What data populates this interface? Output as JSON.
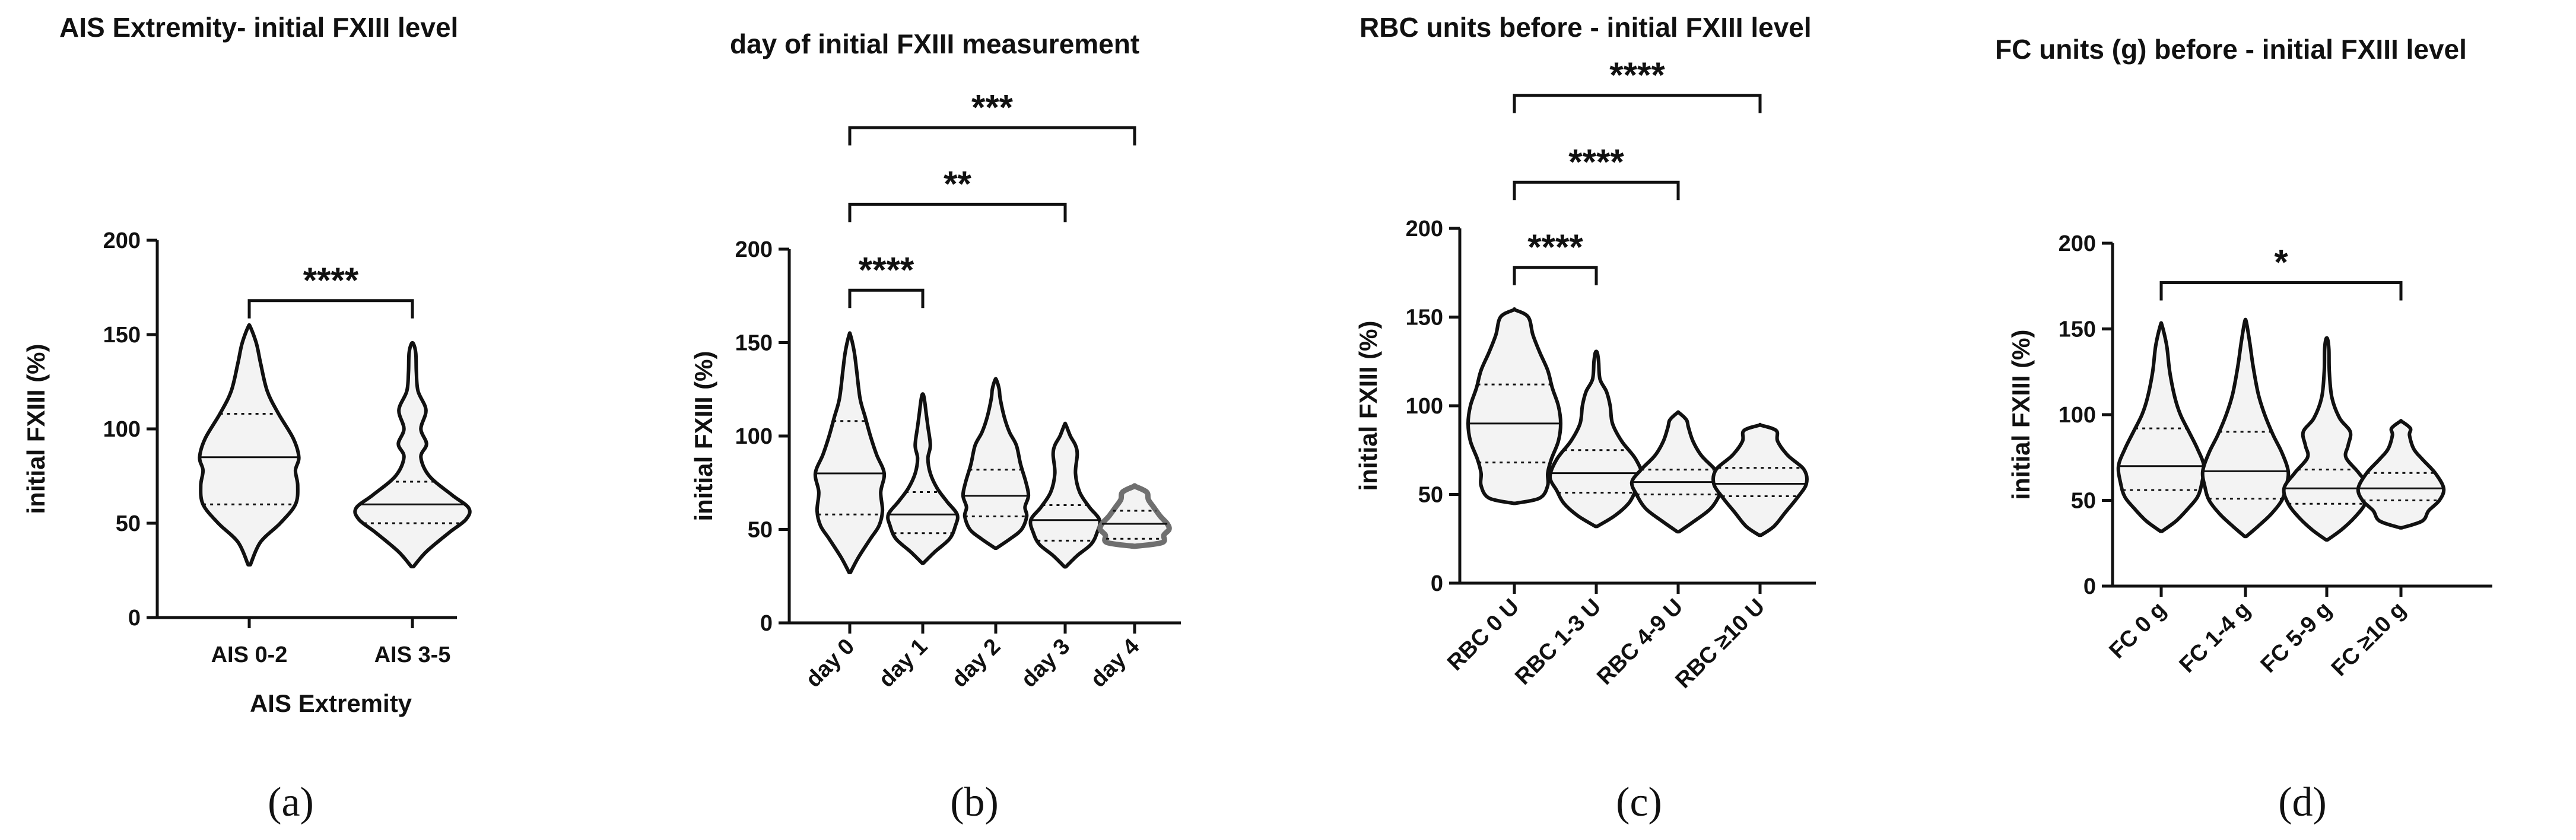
{
  "chart_data": [
    {
      "type": "violin",
      "panel_label": "(a)",
      "title": "AIS Extremity- initial FXIII level",
      "ylabel": "initial FXIII (%)",
      "xlabel": "AIS Extremity",
      "ylim": [
        0,
        200
      ],
      "yticks": [
        "0",
        "50",
        "100",
        "150",
        "200"
      ],
      "categories": [
        "AIS 0-2",
        "AIS 3-5"
      ],
      "series": [
        {
          "name": "AIS 0-2",
          "min": 28,
          "q1": 60,
          "median": 85,
          "q3": 108,
          "max": 154,
          "shape": [
            [
              28,
              0.02
            ],
            [
              40,
              0.2
            ],
            [
              50,
              0.55
            ],
            [
              60,
              0.82
            ],
            [
              70,
              0.86
            ],
            [
              78,
              0.82
            ],
            [
              85,
              0.88
            ],
            [
              95,
              0.78
            ],
            [
              108,
              0.52
            ],
            [
              120,
              0.32
            ],
            [
              135,
              0.2
            ],
            [
              145,
              0.13
            ],
            [
              154,
              0.02
            ]
          ]
        },
        {
          "name": "AIS 3-5",
          "min": 27,
          "q1": 50,
          "median": 60,
          "q3": 72,
          "max": 145,
          "shape": [
            [
              27,
              0.02
            ],
            [
              35,
              0.25
            ],
            [
              45,
              0.65
            ],
            [
              52,
              0.95
            ],
            [
              58,
              1.0
            ],
            [
              65,
              0.7
            ],
            [
              75,
              0.3
            ],
            [
              85,
              0.15
            ],
            [
              92,
              0.25
            ],
            [
              100,
              0.15
            ],
            [
              110,
              0.24
            ],
            [
              120,
              0.1
            ],
            [
              130,
              0.07
            ],
            [
              140,
              0.06
            ],
            [
              145,
              0.02
            ]
          ]
        }
      ],
      "comparisons": [
        {
          "from": 0,
          "to": 1,
          "label": "****",
          "level": 168
        }
      ]
    },
    {
      "type": "violin",
      "panel_label": "(b)",
      "title": "day of initial FXIII measurement",
      "ylabel": "initial FXIII (%)",
      "xlabel": "",
      "ylim": [
        0,
        200
      ],
      "yticks": [
        "0",
        "50",
        "100",
        "150",
        "200"
      ],
      "categories": [
        "day 0",
        "day 1",
        "day 2",
        "day 3",
        "day 4"
      ],
      "series": [
        {
          "name": "day 0",
          "min": 27,
          "q1": 58,
          "median": 80,
          "q3": 108,
          "max": 154,
          "shape": [
            [
              27,
              0.02
            ],
            [
              35,
              0.25
            ],
            [
              45,
              0.6
            ],
            [
              52,
              0.85
            ],
            [
              60,
              0.95
            ],
            [
              70,
              0.9
            ],
            [
              80,
              1.0
            ],
            [
              90,
              0.78
            ],
            [
              100,
              0.6
            ],
            [
              110,
              0.45
            ],
            [
              120,
              0.3
            ],
            [
              135,
              0.2
            ],
            [
              145,
              0.13
            ],
            [
              154,
              0.02
            ]
          ]
        },
        {
          "name": "day 1",
          "min": 32,
          "q1": 48,
          "median": 58,
          "q3": 70,
          "max": 122,
          "shape": [
            [
              32,
              0.02
            ],
            [
              38,
              0.35
            ],
            [
              45,
              0.78
            ],
            [
              52,
              0.95
            ],
            [
              58,
              1.0
            ],
            [
              65,
              0.7
            ],
            [
              72,
              0.42
            ],
            [
              80,
              0.22
            ],
            [
              88,
              0.15
            ],
            [
              95,
              0.22
            ],
            [
              105,
              0.15
            ],
            [
              112,
              0.1
            ],
            [
              118,
              0.06
            ],
            [
              122,
              0.02
            ]
          ]
        },
        {
          "name": "day 2",
          "min": 40,
          "q1": 57,
          "median": 68,
          "q3": 82,
          "max": 130,
          "shape": [
            [
              40,
              0.02
            ],
            [
              45,
              0.42
            ],
            [
              50,
              0.75
            ],
            [
              57,
              0.9
            ],
            [
              62,
              0.85
            ],
            [
              68,
              0.95
            ],
            [
              75,
              0.88
            ],
            [
              85,
              0.72
            ],
            [
              95,
              0.6
            ],
            [
              102,
              0.4
            ],
            [
              110,
              0.25
            ],
            [
              120,
              0.13
            ],
            [
              125,
              0.1
            ],
            [
              130,
              0.02
            ]
          ]
        },
        {
          "name": "day 3",
          "min": 30,
          "q1": 44,
          "median": 55,
          "q3": 63,
          "max": 106,
          "shape": [
            [
              30,
              0.02
            ],
            [
              36,
              0.35
            ],
            [
              42,
              0.75
            ],
            [
              48,
              0.92
            ],
            [
              55,
              1.0
            ],
            [
              62,
              0.7
            ],
            [
              70,
              0.42
            ],
            [
              80,
              0.3
            ],
            [
              90,
              0.35
            ],
            [
              95,
              0.3
            ],
            [
              100,
              0.15
            ],
            [
              106,
              0.02
            ]
          ]
        },
        {
          "name": "day 4",
          "min": 41,
          "q1": 45,
          "median": 53,
          "q3": 60,
          "max": 73,
          "shape": [
            [
              41,
              0.02
            ],
            [
              43,
              0.8
            ],
            [
              47,
              0.85
            ],
            [
              50,
              1.0
            ],
            [
              53,
              0.95
            ],
            [
              57,
              0.75
            ],
            [
              62,
              0.55
            ],
            [
              66,
              0.4
            ],
            [
              70,
              0.35
            ],
            [
              73,
              0.02
            ]
          ]
        }
      ],
      "comparisons": [
        {
          "from": 0,
          "to": 1,
          "label": "****",
          "level": 178
        },
        {
          "from": 0,
          "to": 3,
          "label": "**",
          "level": 224
        },
        {
          "from": 0,
          "to": 4,
          "label": "***",
          "level": 265
        }
      ]
    },
    {
      "type": "violin",
      "panel_label": "(c)",
      "title": "RBC units before - initial FXIII level",
      "ylabel": "initial FXIII (%)",
      "xlabel": "",
      "ylim": [
        0,
        200
      ],
      "yticks": [
        "0",
        "50",
        "100",
        "150",
        "200"
      ],
      "categories": [
        "RBC 0 U",
        "RBC 1-3 U",
        "RBC 4-9 U",
        "RBC ≥10 U"
      ],
      "series": [
        {
          "name": "RBC 0 U",
          "min": 45,
          "q1": 68,
          "median": 90,
          "q3": 112,
          "max": 154,
          "shape": [
            [
              45,
              0.02
            ],
            [
              48,
              0.55
            ],
            [
              55,
              0.72
            ],
            [
              62,
              0.72
            ],
            [
              70,
              0.8
            ],
            [
              80,
              0.95
            ],
            [
              90,
              1.0
            ],
            [
              100,
              0.95
            ],
            [
              110,
              0.82
            ],
            [
              120,
              0.72
            ],
            [
              130,
              0.55
            ],
            [
              140,
              0.4
            ],
            [
              150,
              0.3
            ],
            [
              154,
              0.02
            ]
          ]
        },
        {
          "name": "RBC 1-3 U",
          "min": 32,
          "q1": 51,
          "median": 62,
          "q3": 75,
          "max": 130,
          "shape": [
            [
              32,
              0.02
            ],
            [
              38,
              0.4
            ],
            [
              45,
              0.7
            ],
            [
              52,
              0.85
            ],
            [
              60,
              1.0
            ],
            [
              70,
              0.85
            ],
            [
              80,
              0.55
            ],
            [
              90,
              0.35
            ],
            [
              100,
              0.3
            ],
            [
              108,
              0.22
            ],
            [
              115,
              0.08
            ],
            [
              125,
              0.05
            ],
            [
              130,
              0.02
            ]
          ]
        },
        {
          "name": "RBC 4-9 U",
          "min": 29,
          "q1": 50,
          "median": 57,
          "q3": 64,
          "max": 96,
          "shape": [
            [
              29,
              0.02
            ],
            [
              35,
              0.35
            ],
            [
              42,
              0.7
            ],
            [
              50,
              0.9
            ],
            [
              57,
              1.0
            ],
            [
              64,
              0.8
            ],
            [
              72,
              0.5
            ],
            [
              80,
              0.32
            ],
            [
              88,
              0.22
            ],
            [
              92,
              0.18
            ],
            [
              96,
              0.02
            ]
          ]
        },
        {
          "name": "RBC ≥10 U",
          "min": 27,
          "q1": 49,
          "median": 56,
          "q3": 65,
          "max": 89,
          "shape": [
            [
              27,
              0.02
            ],
            [
              32,
              0.3
            ],
            [
              40,
              0.55
            ],
            [
              48,
              0.8
            ],
            [
              56,
              1.0
            ],
            [
              64,
              0.95
            ],
            [
              72,
              0.6
            ],
            [
              80,
              0.38
            ],
            [
              86,
              0.35
            ],
            [
              89,
              0.02
            ]
          ]
        }
      ],
      "comparisons": [
        {
          "from": 0,
          "to": 1,
          "label": "****",
          "level": 178
        },
        {
          "from": 0,
          "to": 2,
          "label": "****",
          "level": 226
        },
        {
          "from": 0,
          "to": 3,
          "label": "****",
          "level": 275
        }
      ]
    },
    {
      "type": "violin",
      "panel_label": "(d)",
      "title": "FC units (g) before - initial FXIII level",
      "ylabel": "initial FXIII (%)",
      "xlabel": "",
      "ylim": [
        0,
        200
      ],
      "yticks": [
        "0",
        "50",
        "100",
        "150",
        "200"
      ],
      "categories": [
        "FC 0 g",
        "FC 1-4 g",
        "FC 5-9 g",
        "FC ≥10 g"
      ],
      "series": [
        {
          "name": "FC 0 g",
          "min": 32,
          "q1": 56,
          "median": 70,
          "q3": 92,
          "max": 152,
          "shape": [
            [
              32,
              0.02
            ],
            [
              38,
              0.35
            ],
            [
              45,
              0.62
            ],
            [
              52,
              0.85
            ],
            [
              60,
              0.95
            ],
            [
              70,
              1.0
            ],
            [
              80,
              0.85
            ],
            [
              90,
              0.65
            ],
            [
              100,
              0.45
            ],
            [
              110,
              0.32
            ],
            [
              125,
              0.2
            ],
            [
              140,
              0.13
            ],
            [
              152,
              0.02
            ]
          ]
        },
        {
          "name": "FC 1-4 g",
          "min": 29,
          "q1": 51,
          "median": 67,
          "q3": 90,
          "max": 154,
          "shape": [
            [
              29,
              0.02
            ],
            [
              35,
              0.3
            ],
            [
              42,
              0.6
            ],
            [
              50,
              0.85
            ],
            [
              58,
              0.95
            ],
            [
              67,
              1.0
            ],
            [
              78,
              0.85
            ],
            [
              88,
              0.65
            ],
            [
              100,
              0.45
            ],
            [
              112,
              0.3
            ],
            [
              128,
              0.18
            ],
            [
              142,
              0.1
            ],
            [
              154,
              0.02
            ]
          ]
        },
        {
          "name": "FC 5-9 g",
          "min": 27,
          "q1": 48,
          "median": 57,
          "q3": 68,
          "max": 144,
          "shape": [
            [
              27,
              0.02
            ],
            [
              33,
              0.35
            ],
            [
              40,
              0.65
            ],
            [
              48,
              0.9
            ],
            [
              57,
              1.0
            ],
            [
              66,
              0.75
            ],
            [
              75,
              0.45
            ],
            [
              82,
              0.5
            ],
            [
              90,
              0.55
            ],
            [
              98,
              0.3
            ],
            [
              110,
              0.12
            ],
            [
              125,
              0.06
            ],
            [
              138,
              0.05
            ],
            [
              144,
              0.02
            ]
          ]
        },
        {
          "name": "FC ≥10 g",
          "min": 34,
          "q1": 50,
          "median": 57,
          "q3": 66,
          "max": 96,
          "shape": [
            [
              34,
              0.02
            ],
            [
              38,
              0.5
            ],
            [
              44,
              0.65
            ],
            [
              50,
              0.9
            ],
            [
              57,
              1.0
            ],
            [
              66,
              0.8
            ],
            [
              74,
              0.5
            ],
            [
              80,
              0.3
            ],
            [
              88,
              0.2
            ],
            [
              92,
              0.22
            ],
            [
              96,
              0.02
            ]
          ]
        }
      ],
      "comparisons": [
        {
          "from": 0,
          "to": 3,
          "label": "*",
          "level": 177
        }
      ]
    }
  ],
  "colors": {
    "violin_fill": "#f3f3f3",
    "stroke": "#111111",
    "highlight_stroke": "#6f6f6f"
  }
}
